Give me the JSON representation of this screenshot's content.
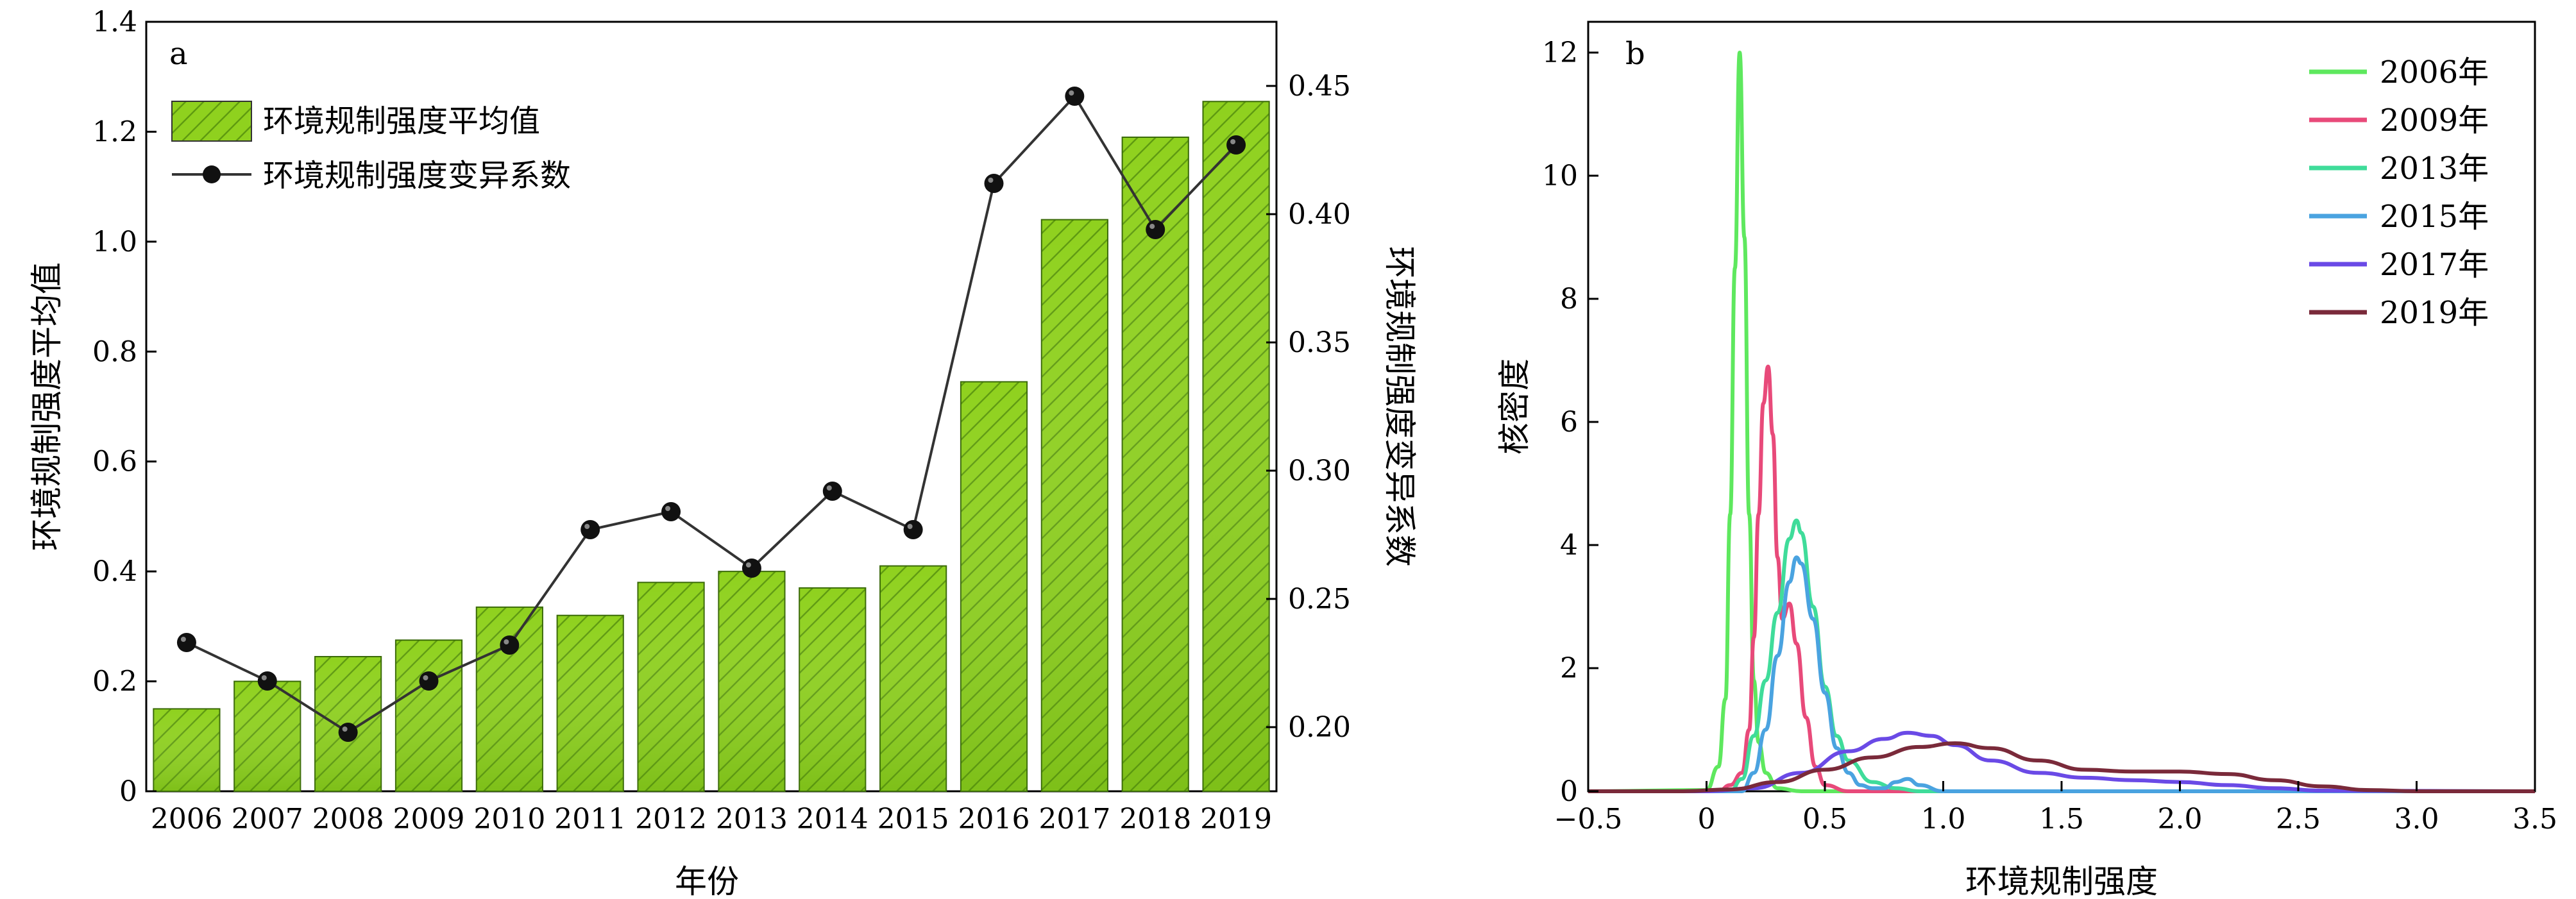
{
  "chart_data": [
    {
      "panel": "a",
      "type": "bar",
      "categories": [
        "2006",
        "2007",
        "2008",
        "2009",
        "2010",
        "2011",
        "2012",
        "2013",
        "2014",
        "2015",
        "2016",
        "2017",
        "2018",
        "2019"
      ],
      "xlabel": "年份",
      "ylabel": "环境规制强度平均值",
      "y2label": "环境规制强度变异系数",
      "ylim": [
        0,
        1.4
      ],
      "y2lim": [
        0.175,
        0.475
      ],
      "yticks": [
        "0",
        "0.2",
        "0.4",
        "0.6",
        "0.8",
        "1.0",
        "1.2",
        "1.4"
      ],
      "y2ticks": [
        "0.20",
        "0.25",
        "0.30",
        "0.35",
        "0.40",
        "0.45"
      ],
      "legend_position": "top-left",
      "series": [
        {
          "name": "环境规制强度平均值",
          "kind": "bar",
          "axis": "left",
          "color": "#8fd11e",
          "values": [
            0.15,
            0.2,
            0.245,
            0.275,
            0.335,
            0.32,
            0.38,
            0.4,
            0.37,
            0.41,
            0.745,
            1.04,
            1.19,
            1.255
          ]
        },
        {
          "name": "环境规制强度变异系数",
          "kind": "line",
          "axis": "right",
          "color": "#333333",
          "values": [
            0.233,
            0.218,
            0.198,
            0.218,
            0.232,
            0.277,
            0.284,
            0.262,
            0.292,
            0.277,
            0.412,
            0.446,
            0.394,
            0.427
          ]
        }
      ]
    },
    {
      "panel": "b",
      "type": "line",
      "xlabel": "环境规制强度",
      "ylabel": "核密度",
      "xlim": [
        -0.5,
        3.5
      ],
      "ylim": [
        0,
        12.5
      ],
      "xticks": [
        "−0.5",
        "0",
        "0.5",
        "1.0",
        "1.5",
        "2.0",
        "2.5",
        "3.0",
        "3.5"
      ],
      "yticks": [
        "0",
        "2",
        "4",
        "6",
        "8",
        "10",
        "12"
      ],
      "legend_position": "top-right",
      "series": [
        {
          "name": "2006年",
          "color": "#5ee85e",
          "x": [
            -0.5,
            0,
            0.05,
            0.08,
            0.1,
            0.12,
            0.14,
            0.16,
            0.18,
            0.2,
            0.22,
            0.25,
            0.3,
            0.4,
            0.5,
            3.5
          ],
          "y": [
            0,
            0.02,
            0.4,
            1.5,
            4.5,
            8.5,
            12.0,
            9.0,
            4.5,
            1.8,
            0.8,
            0.3,
            0.05,
            0,
            0,
            0
          ]
        },
        {
          "name": "2009年",
          "color": "#e84a7a",
          "x": [
            -0.5,
            0.05,
            0.1,
            0.15,
            0.18,
            0.2,
            0.22,
            0.24,
            0.26,
            0.28,
            0.3,
            0.32,
            0.35,
            0.38,
            0.42,
            0.46,
            0.5,
            0.6,
            3.5
          ],
          "y": [
            0,
            0,
            0.1,
            0.3,
            1.0,
            2.5,
            4.5,
            6.3,
            6.9,
            5.8,
            3.8,
            2.8,
            3.05,
            2.4,
            1.2,
            0.4,
            0.1,
            0,
            0
          ]
        },
        {
          "name": "2013年",
          "color": "#3fdc9a",
          "x": [
            -0.5,
            0.1,
            0.15,
            0.2,
            0.25,
            0.3,
            0.35,
            0.38,
            0.4,
            0.45,
            0.5,
            0.55,
            0.6,
            0.7,
            0.8,
            0.9,
            3.5
          ],
          "y": [
            0,
            0,
            0.2,
            0.9,
            1.8,
            2.9,
            4.1,
            4.4,
            4.2,
            3.0,
            1.7,
            0.9,
            0.5,
            0.15,
            0.05,
            0,
            0
          ]
        },
        {
          "name": "2015年",
          "color": "#4aa3e0",
          "x": [
            -0.5,
            0.15,
            0.2,
            0.25,
            0.3,
            0.35,
            0.38,
            0.4,
            0.45,
            0.5,
            0.55,
            0.6,
            0.65,
            0.7,
            0.75,
            0.8,
            0.85,
            0.9,
            1.0,
            3.5
          ],
          "y": [
            0,
            0,
            0.3,
            1.0,
            2.2,
            3.4,
            3.8,
            3.7,
            2.8,
            1.6,
            0.7,
            0.3,
            0.1,
            0.05,
            0.05,
            0.15,
            0.2,
            0.1,
            0,
            0
          ]
        },
        {
          "name": "2017年",
          "color": "#6a4ae6",
          "x": [
            -0.5,
            0,
            0.2,
            0.4,
            0.6,
            0.75,
            0.85,
            0.95,
            1.05,
            1.2,
            1.4,
            1.6,
            1.8,
            2.0,
            2.2,
            2.4,
            2.6,
            3.5
          ],
          "y": [
            0,
            0,
            0.05,
            0.3,
            0.65,
            0.85,
            0.95,
            0.9,
            0.75,
            0.5,
            0.3,
            0.22,
            0.18,
            0.15,
            0.1,
            0.05,
            0.01,
            0
          ]
        },
        {
          "name": "2019年",
          "color": "#7a2a3a",
          "x": [
            -0.5,
            -0.1,
            0.1,
            0.3,
            0.5,
            0.7,
            0.9,
            1.05,
            1.2,
            1.4,
            1.6,
            1.8,
            2.0,
            2.2,
            2.4,
            2.6,
            2.8,
            3.0,
            3.5
          ],
          "y": [
            0,
            0,
            0.03,
            0.15,
            0.35,
            0.55,
            0.72,
            0.78,
            0.7,
            0.5,
            0.35,
            0.32,
            0.32,
            0.28,
            0.18,
            0.08,
            0.02,
            0,
            0
          ]
        }
      ]
    }
  ]
}
